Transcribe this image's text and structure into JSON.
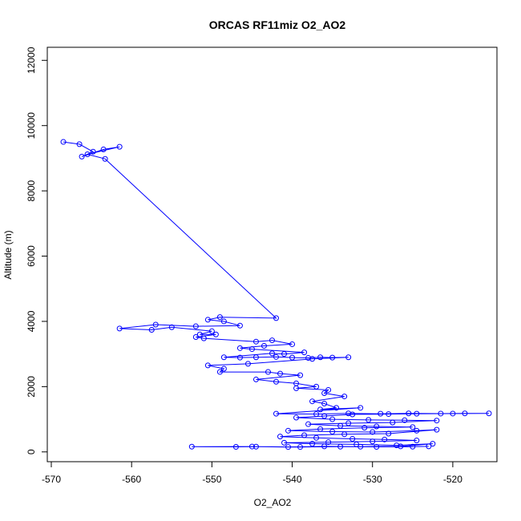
{
  "chart_data": {
    "type": "line",
    "title": "ORCAS RF11miz O2_AO2",
    "xlabel": "O2_AO2",
    "ylabel": "Altitude (m)",
    "xlim": [
      -570.5,
      -514.5
    ],
    "ylim": [
      -300,
      12400
    ],
    "xticks": [
      -570,
      -560,
      -550,
      -540,
      -530,
      -520
    ],
    "yticks": [
      0,
      2000,
      4000,
      6000,
      8000,
      10000,
      12000
    ],
    "series_color": "#0000ff",
    "series": [
      {
        "name": "O2_AO2",
        "style": "line+circle",
        "points": [
          [
            -568.5,
            9500
          ],
          [
            -566.5,
            9430
          ],
          [
            -564.8,
            9200
          ],
          [
            -566.2,
            9050
          ],
          [
            -563.5,
            9270
          ],
          [
            -561.5,
            9350
          ],
          [
            -565.5,
            9120
          ],
          [
            -563.3,
            8980
          ],
          [
            -542,
            4100
          ],
          [
            -549,
            4130
          ],
          [
            -550.5,
            4050
          ],
          [
            -548.5,
            4000
          ],
          [
            -546.5,
            3870
          ],
          [
            -552,
            3850
          ],
          [
            -557,
            3900
          ],
          [
            -561.5,
            3780
          ],
          [
            -557.5,
            3740
          ],
          [
            -555,
            3820
          ],
          [
            -550,
            3700
          ],
          [
            -551.5,
            3600
          ],
          [
            -549.5,
            3600
          ],
          [
            -552,
            3520
          ],
          [
            -551,
            3480
          ],
          [
            -544.5,
            3380
          ],
          [
            -542.5,
            3420
          ],
          [
            -540,
            3300
          ],
          [
            -543.5,
            3250
          ],
          [
            -546.5,
            3180
          ],
          [
            -545,
            3150
          ],
          [
            -538.5,
            3050
          ],
          [
            -541,
            3000
          ],
          [
            -542.5,
            3020
          ],
          [
            -548.5,
            2900
          ],
          [
            -546.5,
            2890
          ],
          [
            -544.5,
            2900
          ],
          [
            -542,
            2910
          ],
          [
            -540,
            2890
          ],
          [
            -538,
            2880
          ],
          [
            -536.5,
            2900
          ],
          [
            -535,
            2890
          ],
          [
            -533,
            2900
          ],
          [
            -537.5,
            2850
          ],
          [
            -545.5,
            2700
          ],
          [
            -550.5,
            2650
          ],
          [
            -548.5,
            2550
          ],
          [
            -549,
            2450
          ],
          [
            -543,
            2450
          ],
          [
            -541.5,
            2400
          ],
          [
            -539,
            2350
          ],
          [
            -544.5,
            2220
          ],
          [
            -542,
            2150
          ],
          [
            -539.5,
            2100
          ],
          [
            -537,
            2000
          ],
          [
            -539.5,
            1950
          ],
          [
            -535.5,
            1900
          ],
          [
            -536,
            1800
          ],
          [
            -533.5,
            1700
          ],
          [
            -537.5,
            1550
          ],
          [
            -536,
            1480
          ],
          [
            -534.5,
            1350
          ],
          [
            -536.5,
            1300
          ],
          [
            -531.5,
            1350
          ],
          [
            -542,
            1170
          ],
          [
            -537,
            1160
          ],
          [
            -533,
            1180
          ],
          [
            -529,
            1170
          ],
          [
            -525.5,
            1180
          ],
          [
            -521.5,
            1175
          ],
          [
            -518.5,
            1180
          ],
          [
            -515.5,
            1180
          ],
          [
            -520,
            1175
          ],
          [
            -524.5,
            1170
          ],
          [
            -528,
            1160
          ],
          [
            -532.5,
            1150
          ],
          [
            -536,
            1100
          ],
          [
            -539.5,
            1050
          ],
          [
            -535,
            1000
          ],
          [
            -530.5,
            980
          ],
          [
            -526,
            970
          ],
          [
            -522,
            960
          ],
          [
            -527.5,
            900
          ],
          [
            -533,
            880
          ],
          [
            -538,
            850
          ],
          [
            -534,
            800
          ],
          [
            -529.5,
            780
          ],
          [
            -525,
            760
          ],
          [
            -531,
            740
          ],
          [
            -536.5,
            700
          ],
          [
            -540.5,
            650
          ],
          [
            -535,
            620
          ],
          [
            -530,
            610
          ],
          [
            -524.5,
            650
          ],
          [
            -522,
            680
          ],
          [
            -528,
            560
          ],
          [
            -533.5,
            540
          ],
          [
            -538.5,
            510
          ],
          [
            -541.5,
            470
          ],
          [
            -537,
            430
          ],
          [
            -532.5,
            400
          ],
          [
            -528.5,
            380
          ],
          [
            -524.5,
            350
          ],
          [
            -530,
            320
          ],
          [
            -535.5,
            300
          ],
          [
            -541,
            280
          ],
          [
            -537.5,
            250
          ],
          [
            -532,
            230
          ],
          [
            -527,
            200
          ],
          [
            -522.5,
            250
          ],
          [
            -526.5,
            170
          ],
          [
            -531.5,
            160
          ],
          [
            -536,
            170
          ],
          [
            -540.5,
            150
          ],
          [
            -544.5,
            160
          ],
          [
            -547,
            155
          ],
          [
            -552.5,
            160
          ],
          [
            -545,
            165
          ],
          [
            -539,
            150
          ],
          [
            -534,
            160
          ],
          [
            -529.5,
            155
          ],
          [
            -525,
            160
          ],
          [
            -523,
            170
          ]
        ]
      }
    ]
  }
}
